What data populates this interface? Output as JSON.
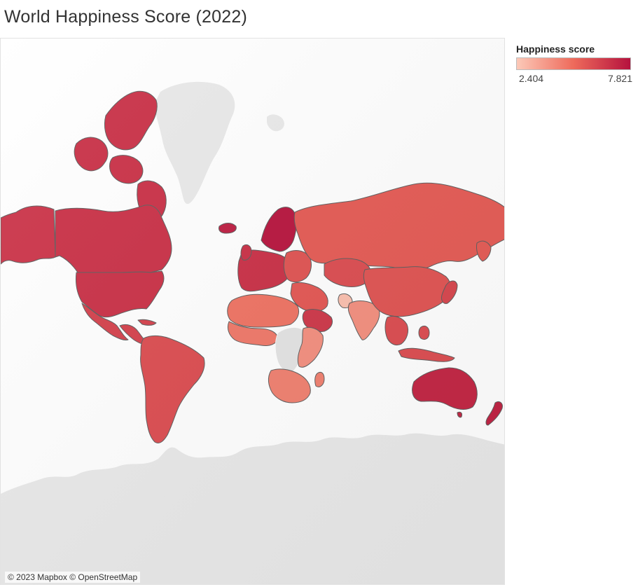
{
  "title": "World Happiness Score (2022)",
  "legend": {
    "title": "Happiness score",
    "min_label": "2.404",
    "max_label": "7.821",
    "color_low": "#fcc9b8",
    "color_mid": "#ee6a5b",
    "color_high": "#b5123e"
  },
  "attribution": "© 2023 Mapbox © OpenStreetMap",
  "map": {
    "type": "choropleth",
    "measure": "Happiness score",
    "projection": "mercator",
    "nodata_color": "#e9e9e9",
    "border_color": "#5f5f5f",
    "regions": [
      {
        "id": "north-america",
        "level": 0.82
      },
      {
        "id": "alaska",
        "level": 0.8
      },
      {
        "id": "canadian-arctic",
        "level": 0.82
      },
      {
        "id": "central-america",
        "level": 0.72
      },
      {
        "id": "south-america",
        "level": 0.66
      },
      {
        "id": "europe-west",
        "level": 0.82
      },
      {
        "id": "nordic",
        "level": 0.97
      },
      {
        "id": "iceland",
        "level": 0.92
      },
      {
        "id": "eastern-europe",
        "level": 0.62
      },
      {
        "id": "russia",
        "level": 0.58
      },
      {
        "id": "middle-east",
        "level": 0.6
      },
      {
        "id": "saudi-arabia",
        "level": 0.78
      },
      {
        "id": "north-africa",
        "level": 0.45
      },
      {
        "id": "west-africa",
        "level": 0.42
      },
      {
        "id": "central-africa",
        "level": 0.0,
        "nodata": true
      },
      {
        "id": "east-africa",
        "level": 0.3
      },
      {
        "id": "southern-africa",
        "level": 0.38
      },
      {
        "id": "central-asia",
        "level": 0.66
      },
      {
        "id": "china",
        "level": 0.62
      },
      {
        "id": "india",
        "level": 0.3
      },
      {
        "id": "afghanistan",
        "level": 0.05
      },
      {
        "id": "southeast-asia",
        "level": 0.66
      },
      {
        "id": "japan",
        "level": 0.7
      },
      {
        "id": "australia",
        "level": 0.88
      },
      {
        "id": "new-zealand",
        "level": 0.9
      },
      {
        "id": "greenland",
        "level": 0.0,
        "nodata": true
      },
      {
        "id": "antarctica",
        "level": 0.0,
        "nodata": true
      }
    ]
  }
}
